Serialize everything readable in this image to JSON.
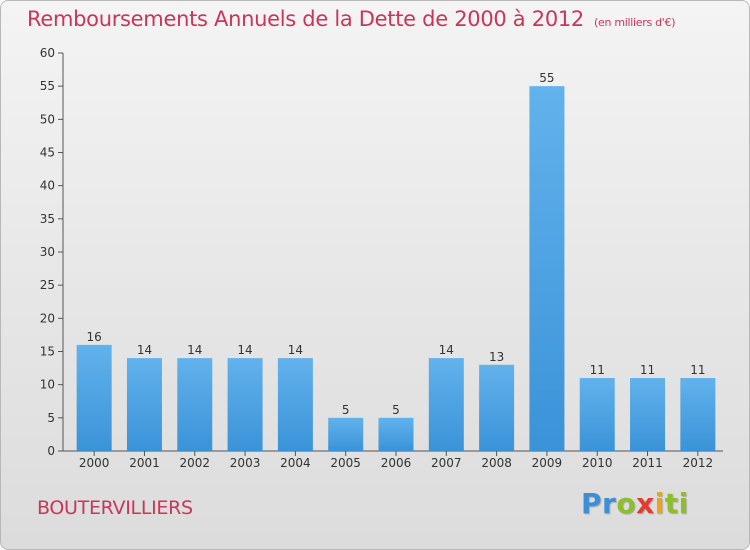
{
  "chart_data": {
    "type": "bar",
    "title": "Remboursements Annuels de la Dette de 2000 à 2012",
    "subtitle": "(en milliers d'€)",
    "categories": [
      "2000",
      "2001",
      "2002",
      "2003",
      "2004",
      "2005",
      "2006",
      "2007",
      "2008",
      "2009",
      "2010",
      "2011",
      "2012"
    ],
    "values": [
      16,
      14,
      14,
      14,
      14,
      5,
      5,
      14,
      13,
      55,
      11,
      11,
      11
    ],
    "ylim": [
      0,
      60
    ],
    "yticks": [
      0,
      5,
      10,
      15,
      20,
      25,
      30,
      35,
      40,
      45,
      50,
      55,
      60
    ],
    "grid": false,
    "bar_color": "#3a93d8",
    "bar_color_light": "#62b2ec"
  },
  "footer": {
    "place": "BOUTERVILLIERS",
    "logo_text": "Proxiti"
  }
}
